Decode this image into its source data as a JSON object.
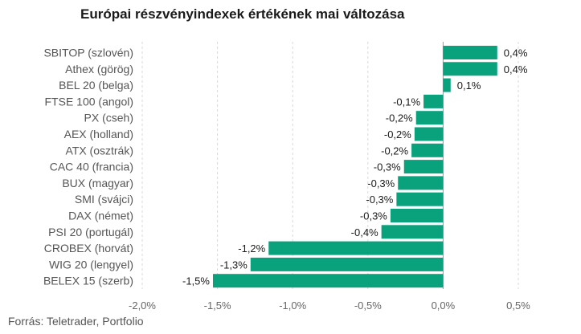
{
  "title": "Európai részvényindexek értékének mai változása",
  "source": "Forrás: Teletrader, Portfolio",
  "colors": {
    "bar": "#0aa17d",
    "grid": "#d9d9d9",
    "zero_line": "#999999"
  },
  "chart_data": {
    "type": "bar",
    "orientation": "horizontal",
    "title": "Európai részvényindexek értékének mai változása",
    "xlabel": "",
    "ylabel": "",
    "xlim": [
      -2.0,
      0.5
    ],
    "grid": true,
    "categories": [
      "SBITOP (szlovén)",
      "Athex (görög)",
      "BEL 20 (belga)",
      "FTSE 100 (angol)",
      "PX (cseh)",
      "AEX (holland)",
      "ATX (osztrák)",
      "CAC 40 (francia)",
      "BUX (magyar)",
      "SMI (svájci)",
      "DAX (német)",
      "PSI 20 (portugál)",
      "CROBEX (horvát)",
      "WIG 20 (lengyel)",
      "BELEX 15 (szerb)"
    ],
    "values": [
      0.36,
      0.36,
      0.05,
      -0.13,
      -0.18,
      -0.19,
      -0.21,
      -0.26,
      -0.3,
      -0.31,
      -0.35,
      -0.41,
      -1.16,
      -1.28,
      -1.53
    ],
    "value_labels": [
      "0,4%",
      "0,4%",
      "0,1%",
      "-0,1%",
      "-0,2%",
      "-0,2%",
      "-0,2%",
      "-0,3%",
      "-0,3%",
      "-0,3%",
      "-0,3%",
      "-0,4%",
      "-1,2%",
      "-1,3%",
      "-1,5%"
    ],
    "ticks": [
      -2.0,
      -1.5,
      -1.0,
      -0.5,
      0.0,
      0.5
    ],
    "tick_labels": [
      "-2,0%",
      "-1,5%",
      "-1,0%",
      "-0,5%",
      "0,0%",
      "0,5%"
    ]
  }
}
